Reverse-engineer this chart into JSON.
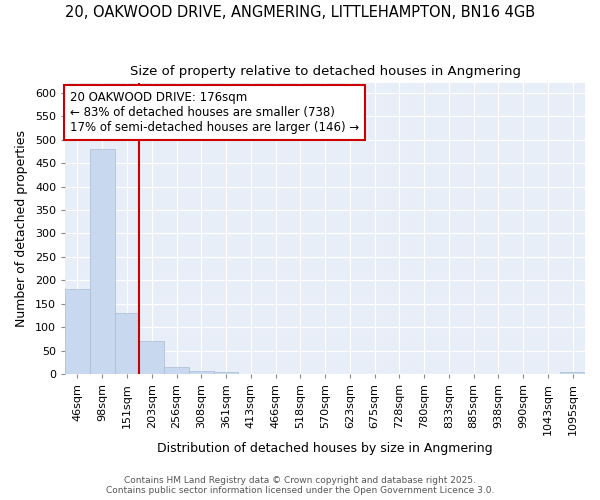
{
  "title_line1": "20, OAKWOOD DRIVE, ANGMERING, LITTLEHAMPTON, BN16 4GB",
  "title_line2": "Size of property relative to detached houses in Angmering",
  "xlabel": "Distribution of detached houses by size in Angmering",
  "ylabel": "Number of detached properties",
  "categories": [
    "46sqm",
    "98sqm",
    "151sqm",
    "203sqm",
    "256sqm",
    "308sqm",
    "361sqm",
    "413sqm",
    "466sqm",
    "518sqm",
    "570sqm",
    "623sqm",
    "675sqm",
    "728sqm",
    "780sqm",
    "833sqm",
    "885sqm",
    "938sqm",
    "990sqm",
    "1043sqm",
    "1095sqm"
  ],
  "bar_values": [
    181,
    481,
    130,
    70,
    16,
    7,
    5,
    0,
    0,
    0,
    0,
    0,
    0,
    0,
    0,
    0,
    0,
    0,
    0,
    0,
    5
  ],
  "bar_color": "#c8d8ee",
  "bar_edgecolor": "#aabbd0",
  "red_line_index": 2,
  "red_line_color": "#cc0000",
  "annotation_text": "20 OAKWOOD DRIVE: 176sqm\n← 83% of detached houses are smaller (738)\n17% of semi-detached houses are larger (146) →",
  "annotation_box_edgecolor": "#cc0000",
  "annotation_box_facecolor": "#ffffff",
  "annotation_text_color": "#000000",
  "ylim": [
    0,
    620
  ],
  "yticks": [
    0,
    50,
    100,
    150,
    200,
    250,
    300,
    350,
    400,
    450,
    500,
    550,
    600
  ],
  "plot_bg_color": "#e8eef8",
  "grid_color": "#ffffff",
  "fig_bg_color": "#ffffff",
  "footer_line1": "Contains HM Land Registry data © Crown copyright and database right 2025.",
  "footer_line2": "Contains public sector information licensed under the Open Government Licence 3.0.",
  "title_fontsize": 10.5,
  "subtitle_fontsize": 9.5,
  "axis_label_fontsize": 9,
  "tick_fontsize": 8,
  "annotation_fontsize": 8.5,
  "footer_fontsize": 6.5
}
